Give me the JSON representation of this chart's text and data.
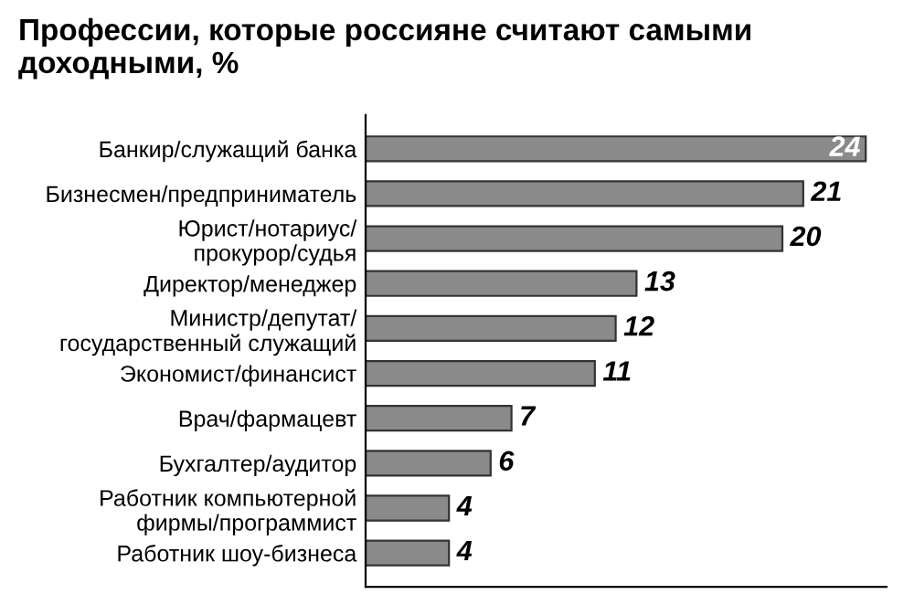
{
  "chart_data": {
    "type": "bar",
    "orientation": "horizontal",
    "title": "Профессии, которые россияне считают самыми доходными, %",
    "categories": [
      "Банкир/служащий банка",
      "Бизнесмен/предприниматель",
      "Юрист/нотариус/\nпрокурор/судья",
      "Директор/менеджер",
      "Министр/депутат/\nгосударственный служащий",
      "Экономист/финансист",
      "Врач/фармацевт",
      "Бухгалтер/аудитор",
      "Работник компьютерной\nфирмы/программист",
      "Работник шоу-бизнеса"
    ],
    "values": [
      24,
      21,
      20,
      13,
      12,
      11,
      7,
      6,
      4,
      4
    ],
    "color": "#8a8a8a",
    "data_labels": true,
    "xlim": [
      0,
      25
    ]
  }
}
